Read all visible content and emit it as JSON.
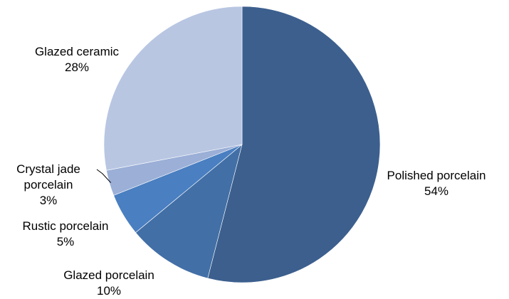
{
  "chart_data": {
    "type": "pie",
    "start_angle_deg": 0,
    "direction": "clockwise",
    "slices": [
      {
        "name": "Polished porcelain",
        "value": 54,
        "label": "54%",
        "color": "#3C5F8E"
      },
      {
        "name": "Glazed porcelain",
        "value": 10,
        "label": "10%",
        "color": "#426FA6"
      },
      {
        "name": "Rustic porcelain",
        "value": 5,
        "label": "5%",
        "color": "#4A7FC1"
      },
      {
        "name": "Crystal jade porcelain",
        "value": 3,
        "label": "3%",
        "color": "#9BAFD7"
      },
      {
        "name": "Glazed ceramic",
        "value": 28,
        "label": "28%",
        "color": "#B8C6E2"
      }
    ]
  }
}
